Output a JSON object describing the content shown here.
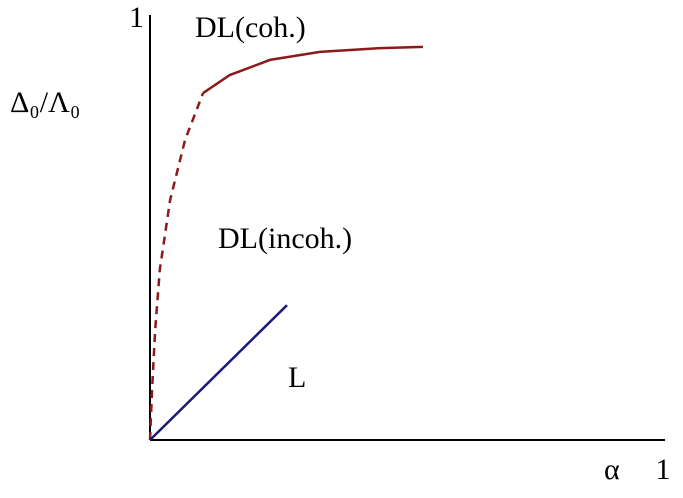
{
  "chart_data": {
    "type": "line",
    "xlabel": "α",
    "ylabel": "Δ₀/Λ₀",
    "xlim": [
      0,
      1
    ],
    "ylim": [
      0,
      1
    ],
    "xticks": [
      1
    ],
    "yticks": [
      1
    ],
    "series": [
      {
        "color": "#8b1a1a",
        "style": "dashed",
        "x": [
          0,
          0.004,
          0.01,
          0.019,
          0.039,
          0.068,
          0.103
        ],
        "values": [
          0,
          0.119,
          0.262,
          0.405,
          0.571,
          0.714,
          0.826
        ]
      },
      {
        "color": "#8b1a1a",
        "style": "solid",
        "x": [
          0.103,
          0.155,
          0.233,
          0.33,
          0.447,
          0.53
        ],
        "values": [
          0.826,
          0.869,
          0.905,
          0.924,
          0.933,
          0.936
        ]
      },
      {
        "color": "#1a1a7a",
        "style": "solid",
        "x": [
          0,
          0.266
        ],
        "values": [
          0,
          0.321
        ]
      }
    ],
    "annotations": [
      "DL(coh.)",
      "DL(incoh.)",
      "L"
    ]
  }
}
